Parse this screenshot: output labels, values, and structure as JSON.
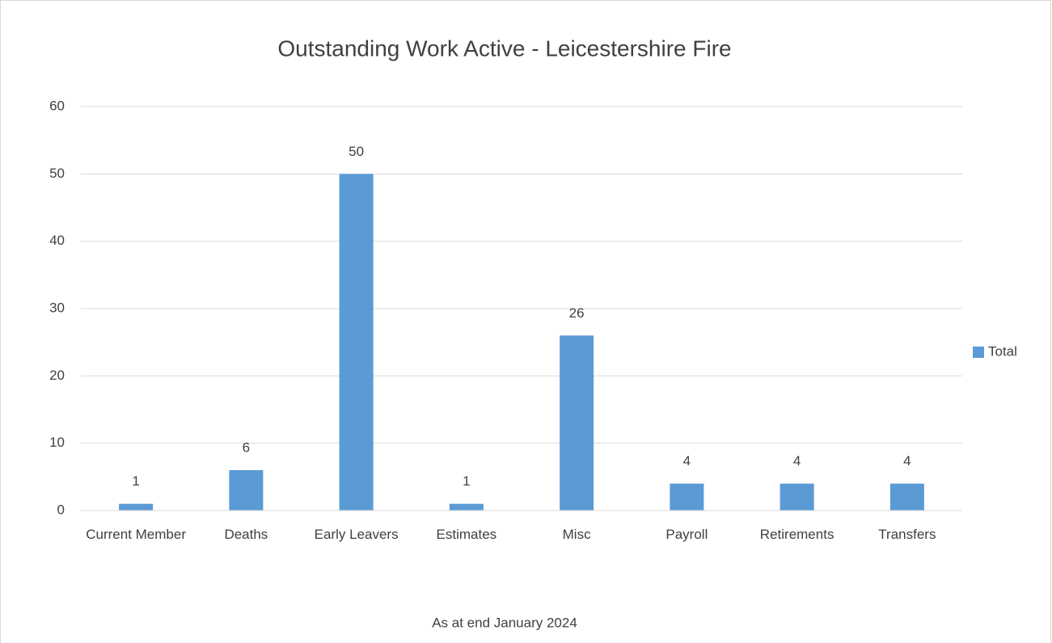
{
  "chart_data": {
    "type": "bar",
    "title": "Outstanding Work Active -  Leicestershire Fire",
    "xlabel": "As at end January 2024",
    "categories": [
      "Current Member",
      "Deaths",
      "Early Leavers",
      "Estimates",
      "Misc",
      "Payroll",
      "Retirements",
      "Transfers"
    ],
    "series": [
      {
        "name": "Total",
        "color": "#5b9bd5",
        "values": [
          1,
          6,
          50,
          1,
          26,
          4,
          4,
          4
        ]
      }
    ],
    "ylim": [
      0,
      60
    ],
    "yticks": [
      0,
      10,
      20,
      30,
      40,
      50,
      60
    ],
    "grid": true,
    "legend": "right",
    "data_labels": true
  }
}
